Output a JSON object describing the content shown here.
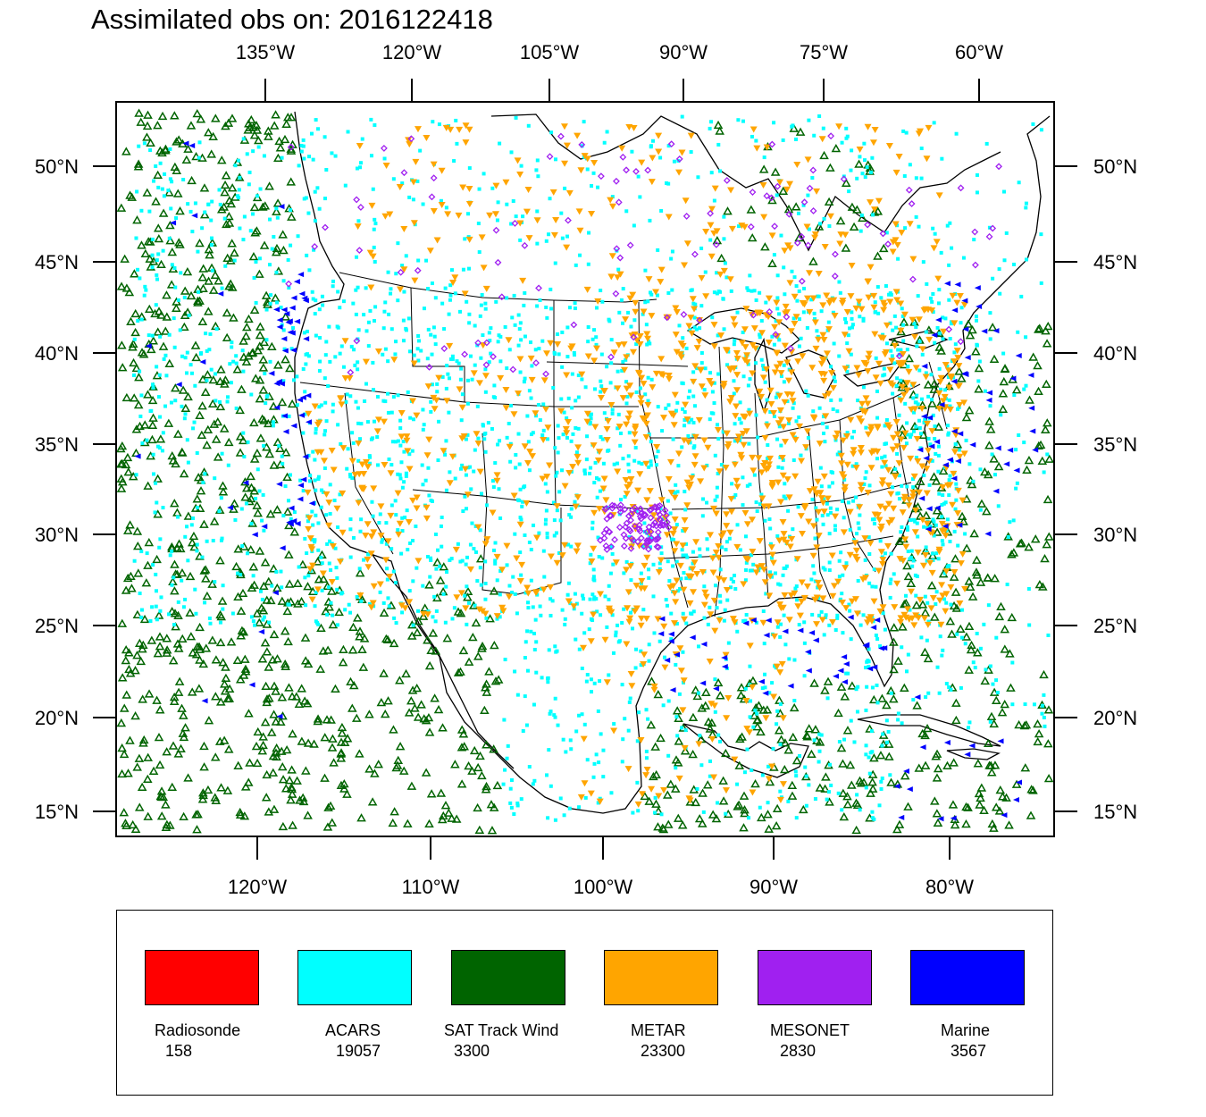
{
  "title": "Assimilated obs on: 2016122418",
  "map": {
    "top_lon_labels": [
      "135°W",
      "120°W",
      "105°W",
      "90°W",
      "75°W",
      "60°W"
    ],
    "bottom_lon_labels": [
      "120°W",
      "110°W",
      "100°W",
      "90°W",
      "80°W"
    ],
    "left_lat_labels": [
      "50°N",
      "45°N",
      "40°N",
      "35°N",
      "30°N",
      "25°N",
      "20°N",
      "15°N"
    ],
    "right_lat_labels": [
      "50°N",
      "45°N",
      "40°N",
      "35°N",
      "30°N",
      "25°N",
      "20°N",
      "15°N"
    ]
  },
  "legend": [
    {
      "name": "Radiosonde",
      "count": "158",
      "color": "#ff0000",
      "marker": "dot"
    },
    {
      "name": "ACARS",
      "count": "19057",
      "color": "#00ffff",
      "marker": "square"
    },
    {
      "name": "SAT Track Wind",
      "count": "3300",
      "color": "#006400",
      "marker": "triangle-up"
    },
    {
      "name": "METAR",
      "count": "23300",
      "color": "#ffa500",
      "marker": "triangle-down"
    },
    {
      "name": "MESONET",
      "count": "2830",
      "color": "#a020f0",
      "marker": "diamond"
    },
    {
      "name": "Marine",
      "count": "3567",
      "color": "#0000ff",
      "marker": "triangle-left"
    }
  ]
}
